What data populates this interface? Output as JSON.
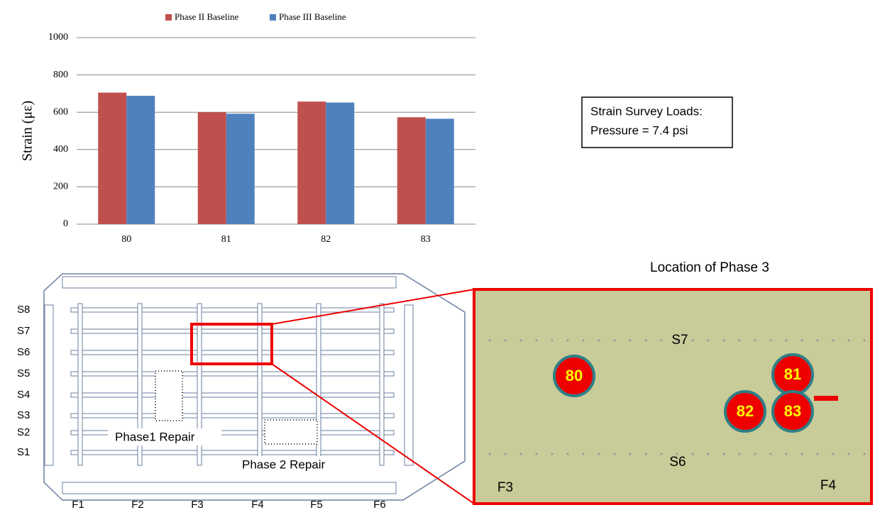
{
  "chart_data": {
    "type": "bar",
    "ylabel": "Strain (με)",
    "categories": [
      "80",
      "81",
      "82",
      "83"
    ],
    "series": [
      {
        "name": "Phase II Baseline",
        "color": "#c0504d",
        "values": [
          705,
          600,
          657,
          573
        ]
      },
      {
        "name": "Phase III Baseline",
        "color": "#4f81bd",
        "values": [
          688,
          592,
          652,
          565
        ]
      }
    ],
    "ylim": [
      0,
      1000
    ],
    "yticks": [
      0,
      200,
      400,
      600,
      800,
      1000
    ],
    "grid": true,
    "legend": "top"
  },
  "text_box": {
    "lines": [
      "Strain Survey Loads:",
      "Pressure = 7.4 psi"
    ]
  },
  "panel_diagram": {
    "stringer_labels": [
      "S8",
      "S7",
      "S6",
      "S5",
      "S4",
      "S3",
      "S2",
      "S1"
    ],
    "frame_labels": [
      "F1",
      "F2",
      "F3",
      "F4",
      "F5",
      "F6"
    ],
    "repair_labels": [
      "Phase1 Repair",
      "Phase 2 Repair"
    ]
  },
  "photo": {
    "title": "Location of Phase 3",
    "labels": [
      "S7",
      "S6",
      "F3",
      "F4"
    ],
    "gauges": [
      "80",
      "81",
      "82",
      "83"
    ]
  }
}
